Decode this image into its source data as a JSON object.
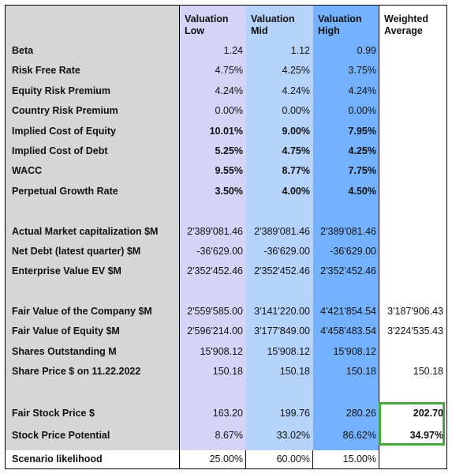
{
  "headers": {
    "low": [
      "Valuation",
      "Low"
    ],
    "mid": [
      "Valuation",
      "Mid"
    ],
    "high": [
      "Valuation",
      "High"
    ],
    "wavg": [
      "Weighted",
      "Average"
    ]
  },
  "rows": [
    {
      "label": "Beta",
      "low": "1.24",
      "mid": "1.12",
      "high": "0.99",
      "wavg": ""
    },
    {
      "label": "Risk Free Rate",
      "low": "4.75%",
      "mid": "4.25%",
      "high": "3.75%",
      "wavg": ""
    },
    {
      "label": "Equity Risk Premium",
      "low": "4.24%",
      "mid": "4.24%",
      "high": "4.24%",
      "wavg": ""
    },
    {
      "label": "Country Risk Premium",
      "low": "0.00%",
      "mid": "0.00%",
      "high": "0.00%",
      "wavg": ""
    },
    {
      "label": "Implied Cost of Equity",
      "low": "10.01%",
      "mid": "9.00%",
      "high": "7.95%",
      "wavg": ""
    },
    {
      "label": "Implied Cost of Debt",
      "low": "5.25%",
      "mid": "4.75%",
      "high": "4.25%",
      "wavg": ""
    },
    {
      "label": "WACC",
      "low": "9.55%",
      "mid": "8.77%",
      "high": "7.75%",
      "wavg": ""
    },
    {
      "label": "Perpetual Growth Rate",
      "low": "3.50%",
      "mid": "4.00%",
      "high": "4.50%",
      "wavg": ""
    },
    {
      "label": "Actual Market capitalization $M",
      "low": "2'389'081.46",
      "mid": "2'389'081.46",
      "high": "2'389'081.46",
      "wavg": ""
    },
    {
      "label": "Net Debt (latest quarter) $M",
      "low": "-36'629.00",
      "mid": "-36'629.00",
      "high": "-36'629.00",
      "wavg": ""
    },
    {
      "label": "Enterprise Value EV $M",
      "low": "2'352'452.46",
      "mid": "2'352'452.46",
      "high": "2'352'452.46",
      "wavg": ""
    },
    {
      "label": "Fair Value of the Company $M",
      "low": "2'559'585.00",
      "mid": "3'141'220.00",
      "high": "4'421'854.54",
      "wavg": "3'187'906.43"
    },
    {
      "label": "Fair Value of Equity $M",
      "low": "2'596'214.00",
      "mid": "3'177'849.00",
      "high": "4'458'483.54",
      "wavg": "3'224'535.43"
    },
    {
      "label": "Shares Outstanding M",
      "low": "15'908.12",
      "mid": "15'908.12",
      "high": "15'908.12",
      "wavg": ""
    },
    {
      "label": "Share Price $ on 11.22.2022",
      "low": "150.18",
      "mid": "150.18",
      "high": "150.18",
      "wavg": "150.18"
    },
    {
      "label": "Fair Stock Price $",
      "low": "163.20",
      "mid": "199.76",
      "high": "280.26",
      "wavg": "202.70"
    },
    {
      "label": "Stock Price Potential",
      "low": "8.67%",
      "mid": "33.02%",
      "high": "86.62%",
      "wavg": "34.97%"
    }
  ],
  "likelihood": {
    "label": "Scenario likelihood",
    "low": "25.00%",
    "mid": "60.00%",
    "high": "15.00%"
  },
  "colors": {
    "label_bg": "#d6d6d6",
    "low_bg": "#d6d4f6",
    "mid_bg": "#b5d3fb",
    "high_bg": "#74b2ff",
    "highlight": "#46a83a"
  }
}
